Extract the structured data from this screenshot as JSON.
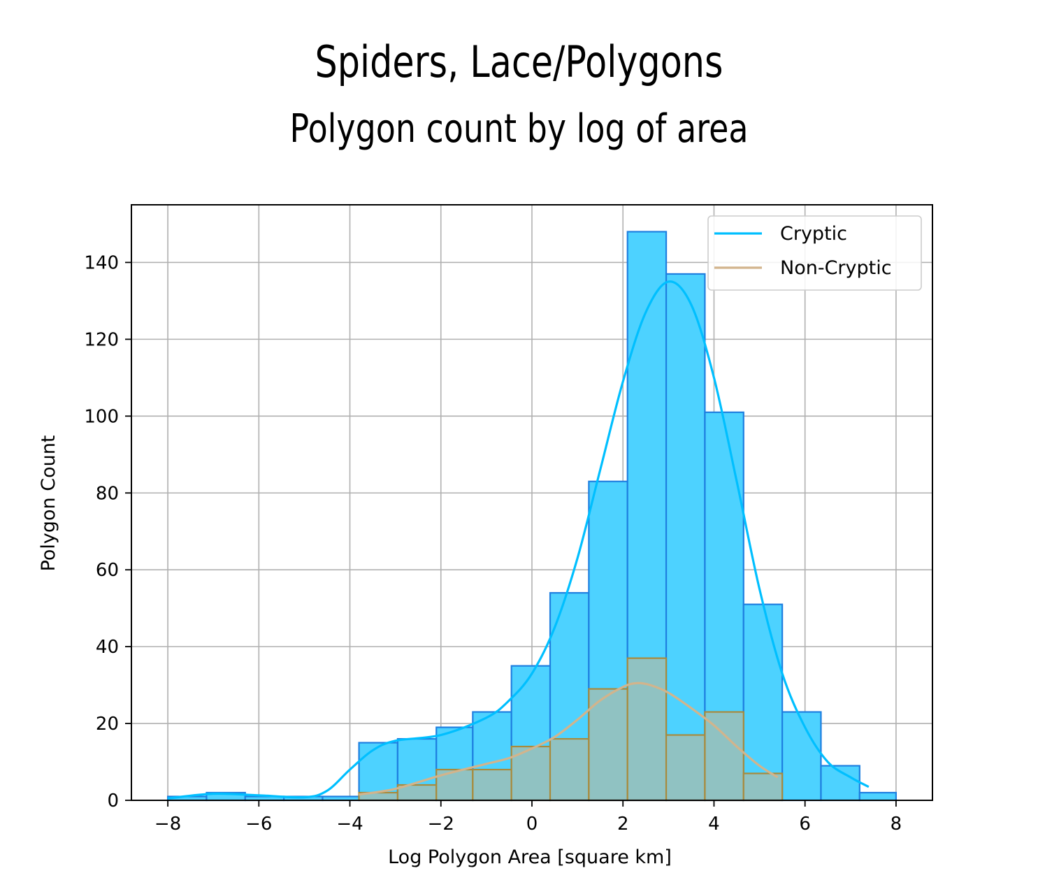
{
  "chart_data": {
    "type": "histogram",
    "title": "Spiders, Lace/Polygons",
    "subtitle": "Polygon count by log of area",
    "xlabel": "Log Polygon Area [square km]",
    "ylabel": "Polygon Count",
    "xlim": [
      -8.8,
      8.8
    ],
    "ylim": [
      0,
      155
    ],
    "xticks": [
      -8,
      -6,
      -4,
      -2,
      0,
      2,
      4,
      6,
      8
    ],
    "xtick_labels": [
      "−8",
      "−6",
      "−4",
      "−2",
      "0",
      "2",
      "4",
      "6",
      "8"
    ],
    "yticks": [
      0,
      20,
      40,
      60,
      80,
      100,
      120,
      140
    ],
    "ytick_labels": [
      "0",
      "20",
      "40",
      "60",
      "80",
      "100",
      "120",
      "140"
    ],
    "grid": true,
    "legend_position": "top-right",
    "series": [
      {
        "name": "Cryptic",
        "color": "#00bfff",
        "bar_fill": "#4dd2ff",
        "bar_edge": "#1e7fe0",
        "bins": [
          {
            "x0": -8.0,
            "x1": -7.15,
            "count": 1
          },
          {
            "x0": -7.15,
            "x1": -6.3,
            "count": 2
          },
          {
            "x0": -6.3,
            "x1": -5.45,
            "count": 1
          },
          {
            "x0": -5.45,
            "x1": -4.6,
            "count": 1
          },
          {
            "x0": -4.6,
            "x1": -3.8,
            "count": 1
          },
          {
            "x0": -3.8,
            "x1": -2.95,
            "count": 15
          },
          {
            "x0": -2.95,
            "x1": -2.1,
            "count": 16
          },
          {
            "x0": -2.1,
            "x1": -1.3,
            "count": 19
          },
          {
            "x0": -1.3,
            "x1": -0.45,
            "count": 23
          },
          {
            "x0": -0.45,
            "x1": 0.4,
            "count": 35
          },
          {
            "x0": 0.4,
            "x1": 1.25,
            "count": 54
          },
          {
            "x0": 1.25,
            "x1": 2.1,
            "count": 83
          },
          {
            "x0": 2.1,
            "x1": 2.95,
            "count": 148
          },
          {
            "x0": 2.95,
            "x1": 3.8,
            "count": 137
          },
          {
            "x0": 3.8,
            "x1": 4.65,
            "count": 101
          },
          {
            "x0": 4.65,
            "x1": 5.5,
            "count": 51
          },
          {
            "x0": 5.5,
            "x1": 6.35,
            "count": 23
          },
          {
            "x0": 6.35,
            "x1": 7.2,
            "count": 9
          },
          {
            "x0": 7.2,
            "x1": 8.0,
            "count": 2
          }
        ],
        "kde": [
          {
            "x": -8.0,
            "y": 0.5
          },
          {
            "x": -7.0,
            "y": 1.7
          },
          {
            "x": -6.0,
            "y": 1.3
          },
          {
            "x": -5.0,
            "y": 0.8
          },
          {
            "x": -4.5,
            "y": 2.5
          },
          {
            "x": -4.0,
            "y": 8.0
          },
          {
            "x": -3.5,
            "y": 13.0
          },
          {
            "x": -3.0,
            "y": 15.5
          },
          {
            "x": -2.0,
            "y": 17.0
          },
          {
            "x": -1.0,
            "y": 21.5
          },
          {
            "x": -0.5,
            "y": 26.0
          },
          {
            "x": 0.0,
            "y": 33.0
          },
          {
            "x": 0.5,
            "y": 45.0
          },
          {
            "x": 1.0,
            "y": 63.0
          },
          {
            "x": 1.5,
            "y": 86.0
          },
          {
            "x": 2.0,
            "y": 109.0
          },
          {
            "x": 2.5,
            "y": 127.0
          },
          {
            "x": 3.0,
            "y": 135.0
          },
          {
            "x": 3.5,
            "y": 129.0
          },
          {
            "x": 4.0,
            "y": 110.0
          },
          {
            "x": 4.5,
            "y": 83.0
          },
          {
            "x": 5.0,
            "y": 55.0
          },
          {
            "x": 5.5,
            "y": 33.0
          },
          {
            "x": 6.0,
            "y": 19.0
          },
          {
            "x": 6.5,
            "y": 10.0
          },
          {
            "x": 7.0,
            "y": 6.0
          },
          {
            "x": 7.4,
            "y": 3.5
          }
        ]
      },
      {
        "name": "Non-Cryptic",
        "color": "#d2b48c",
        "bar_fill": "#90c2c2",
        "bar_edge": "#a88a3c",
        "bins": [
          {
            "x0": -3.8,
            "x1": -2.95,
            "count": 2
          },
          {
            "x0": -2.95,
            "x1": -2.1,
            "count": 4
          },
          {
            "x0": -2.1,
            "x1": -1.3,
            "count": 8
          },
          {
            "x0": -1.3,
            "x1": -0.45,
            "count": 8
          },
          {
            "x0": -0.45,
            "x1": 0.4,
            "count": 14
          },
          {
            "x0": 0.4,
            "x1": 1.25,
            "count": 16
          },
          {
            "x0": 1.25,
            "x1": 2.1,
            "count": 29
          },
          {
            "x0": 2.1,
            "x1": 2.95,
            "count": 37
          },
          {
            "x0": 2.95,
            "x1": 3.8,
            "count": 17
          },
          {
            "x0": 3.8,
            "x1": 4.65,
            "count": 23
          },
          {
            "x0": 4.65,
            "x1": 5.5,
            "count": 7
          }
        ],
        "kde": [
          {
            "x": -3.8,
            "y": 1.5
          },
          {
            "x": -3.0,
            "y": 3.0
          },
          {
            "x": -2.0,
            "y": 6.5
          },
          {
            "x": -1.0,
            "y": 9.5
          },
          {
            "x": -0.5,
            "y": 11.0
          },
          {
            "x": 0.0,
            "y": 13.5
          },
          {
            "x": 0.5,
            "y": 16.5
          },
          {
            "x": 1.0,
            "y": 21.0
          },
          {
            "x": 1.5,
            "y": 26.0
          },
          {
            "x": 2.0,
            "y": 29.5
          },
          {
            "x": 2.3,
            "y": 30.5
          },
          {
            "x": 2.6,
            "y": 30.0
          },
          {
            "x": 3.0,
            "y": 28.0
          },
          {
            "x": 3.5,
            "y": 24.0
          },
          {
            "x": 4.0,
            "y": 19.5
          },
          {
            "x": 4.5,
            "y": 14.0
          },
          {
            "x": 5.0,
            "y": 9.0
          },
          {
            "x": 5.4,
            "y": 6.0
          }
        ]
      }
    ]
  }
}
